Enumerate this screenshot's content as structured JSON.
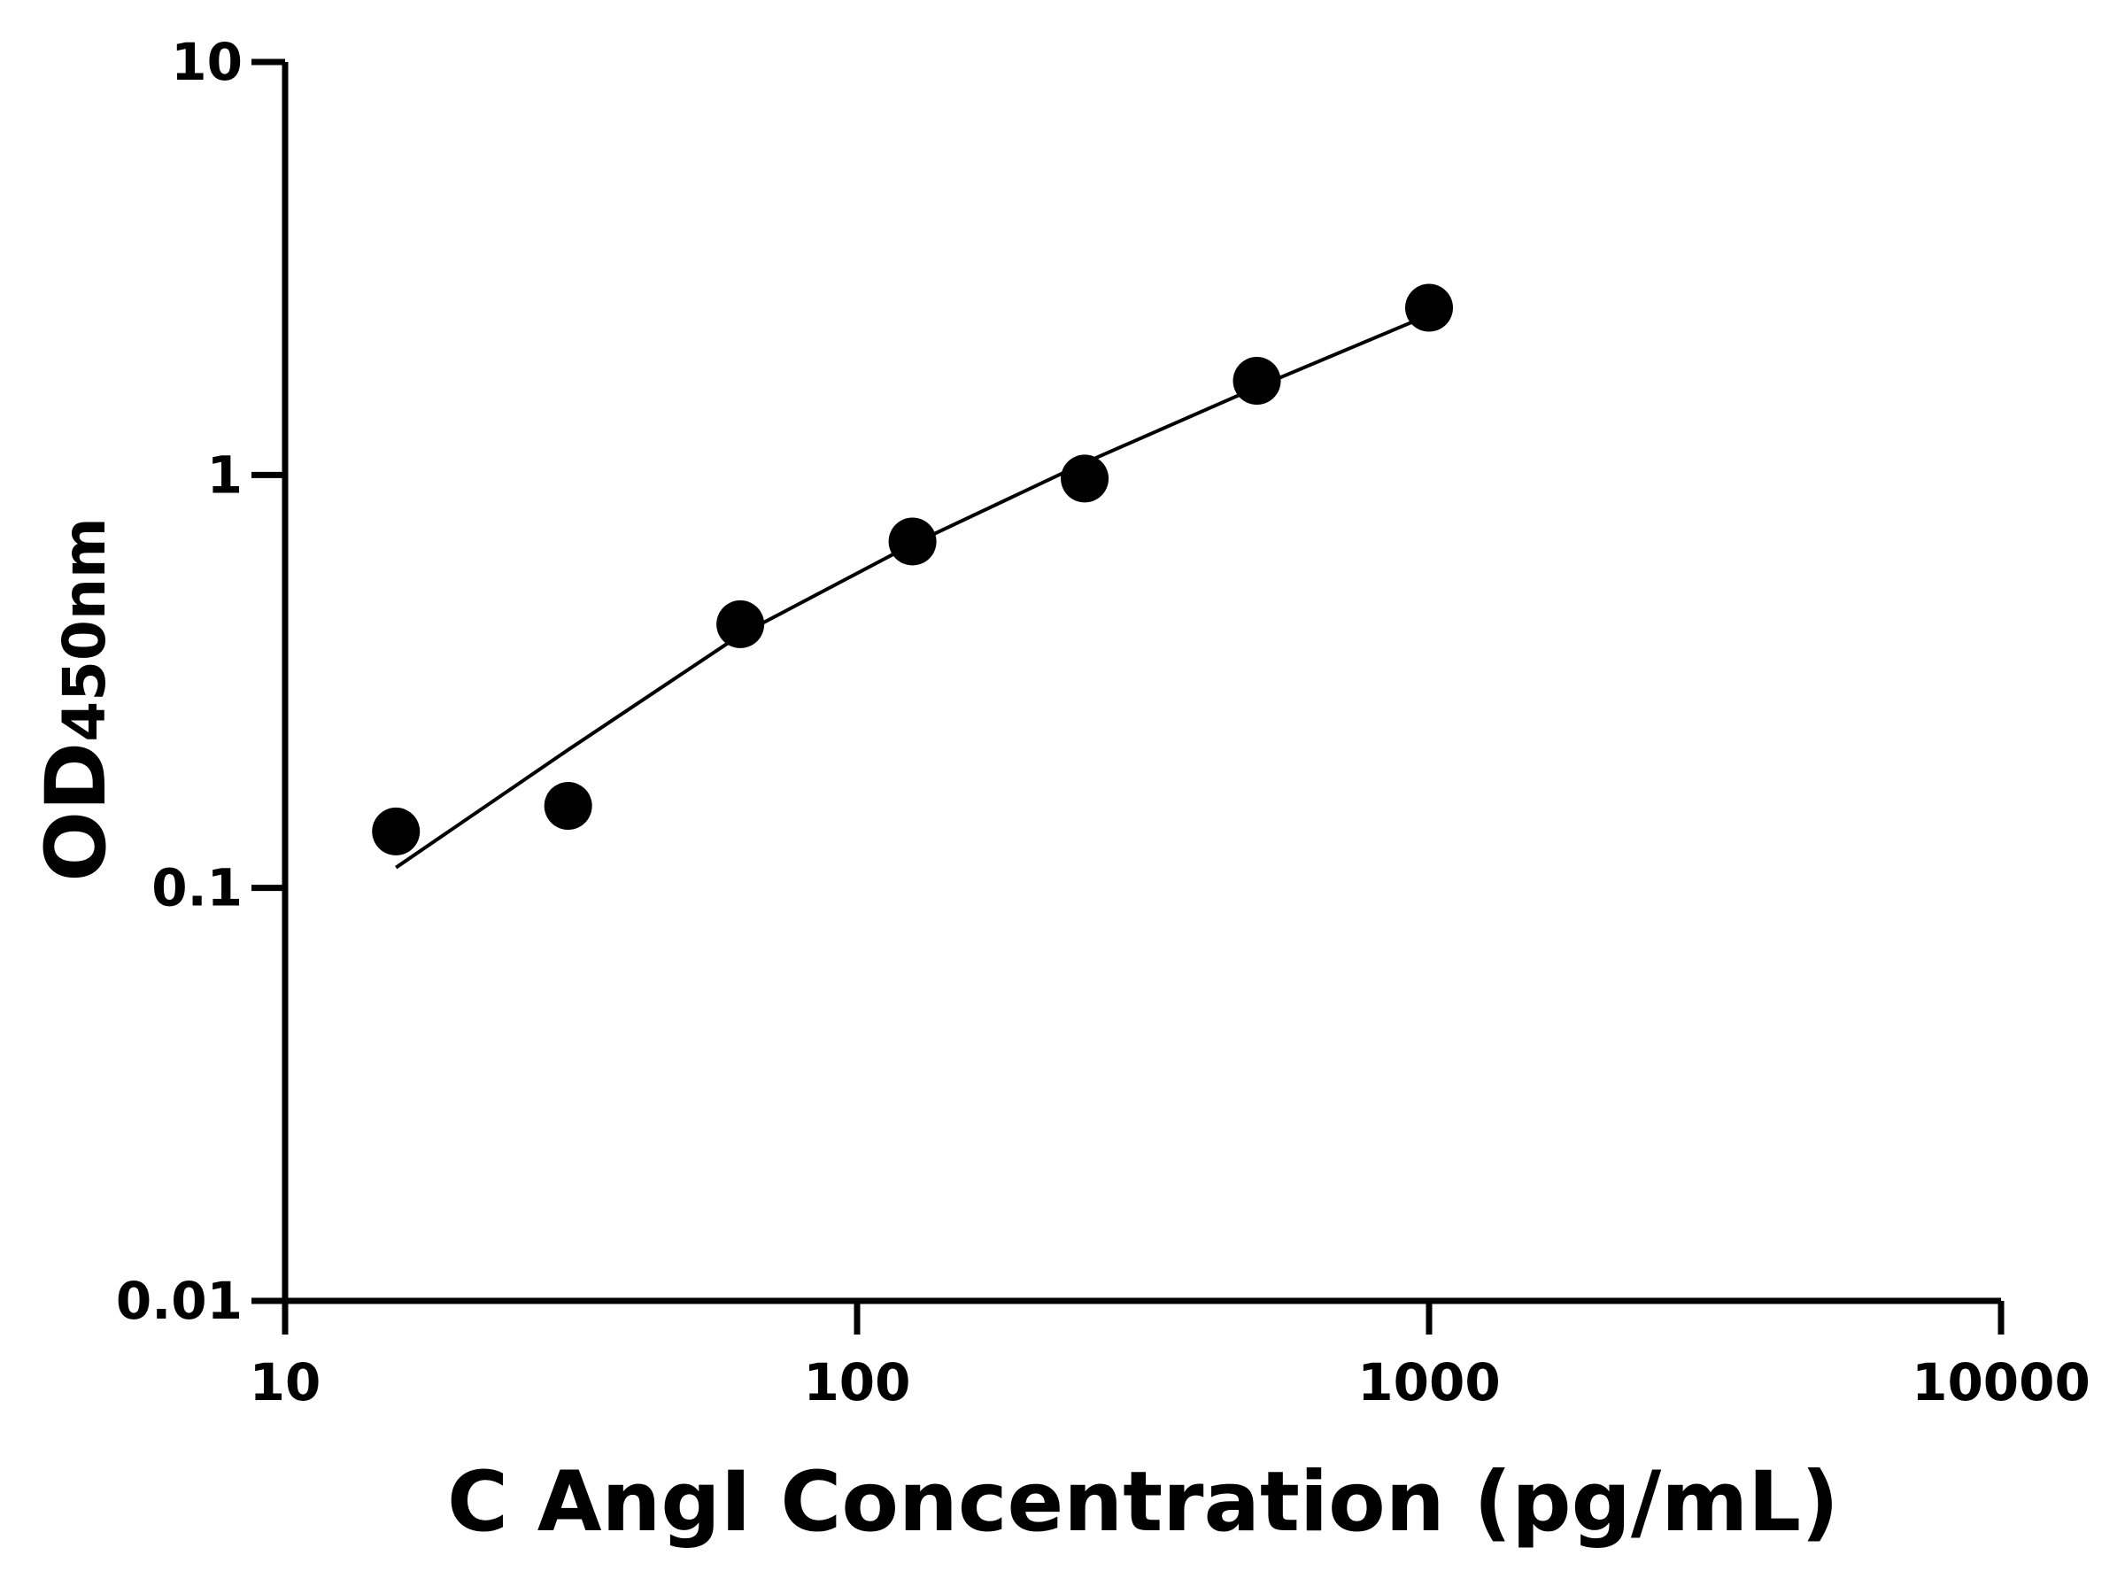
{
  "chart_data": {
    "type": "scatter",
    "xlabel": "C AngI Concentration (pg/mL)",
    "ylabel": "OD",
    "ylabel_sub": "450nm",
    "x": [
      15.625,
      31.25,
      62.5,
      125,
      250,
      500,
      1000
    ],
    "values": [
      0.137,
      0.158,
      0.435,
      0.69,
      0.98,
      1.69,
      2.54
    ],
    "color": "#000000",
    "fit": {
      "x": [
        15.625,
        31.25,
        62.5,
        125,
        250,
        500,
        1000
      ],
      "values": [
        0.112,
        0.216,
        0.41,
        0.68,
        1.07,
        1.63,
        2.44
      ]
    },
    "xlim": [
      10,
      10000
    ],
    "ylim": [
      0.01,
      10
    ],
    "xticks": [
      10,
      100,
      1000,
      10000
    ],
    "yticks": [
      0.01,
      0.1,
      1,
      10
    ],
    "xscale": "log",
    "yscale": "log",
    "grid": false
  }
}
